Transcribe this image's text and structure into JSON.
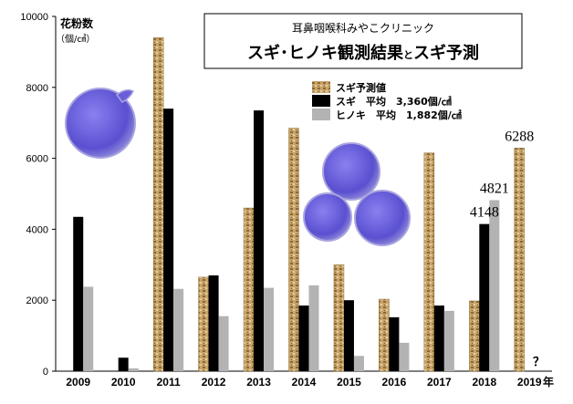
{
  "header": {
    "clinic": "耳鼻咽喉科みやこクリニック",
    "title_a": "スギ･ヒノキ観測結果",
    "title_and": "と",
    "title_b": "スギ予測"
  },
  "unit": {
    "line1": "花粉数",
    "line2": "（個/㎠）"
  },
  "legend": {
    "forecast": "スギ予測値",
    "sugi": "スギ　平均　3,360個/㎠",
    "hinoki": "ヒノキ　平均　1,882個/㎠"
  },
  "year_suffix": "年",
  "unknown_mark": "？",
  "colors": {
    "forecast": "#c8a46a",
    "sugi": "#000000",
    "hinoki": "#b3b3b3",
    "pollen": "#6a5fd8"
  },
  "icons": [
    "pollen-grain-single-icon",
    "pollen-grain-cluster-icon"
  ],
  "chart_data": {
    "type": "bar",
    "categories": [
      "2009",
      "2010",
      "2011",
      "2012",
      "2013",
      "2014",
      "2015",
      "2016",
      "2017",
      "2018",
      "2019"
    ],
    "ylim": [
      0,
      10000
    ],
    "yticks": [
      0,
      2000,
      4000,
      6000,
      8000,
      10000
    ],
    "series": [
      {
        "name": "スギ予測値",
        "values": [
          null,
          null,
          9400,
          2650,
          4600,
          6850,
          3000,
          2030,
          6150,
          1980,
          6288
        ]
      },
      {
        "name": "スギ",
        "values": [
          4350,
          380,
          7400,
          2700,
          7350,
          1850,
          2000,
          1520,
          1850,
          4148,
          null
        ]
      },
      {
        "name": "ヒノキ",
        "values": [
          2380,
          80,
          2320,
          1550,
          2350,
          2420,
          430,
          800,
          1700,
          4821,
          null
        ]
      }
    ],
    "data_labels": [
      {
        "category": "2018",
        "series": "スギ",
        "text": "4148"
      },
      {
        "category": "2018",
        "series": "ヒノキ",
        "text": "4821"
      },
      {
        "category": "2019",
        "series": "スギ予測値",
        "text": "6288"
      }
    ]
  }
}
